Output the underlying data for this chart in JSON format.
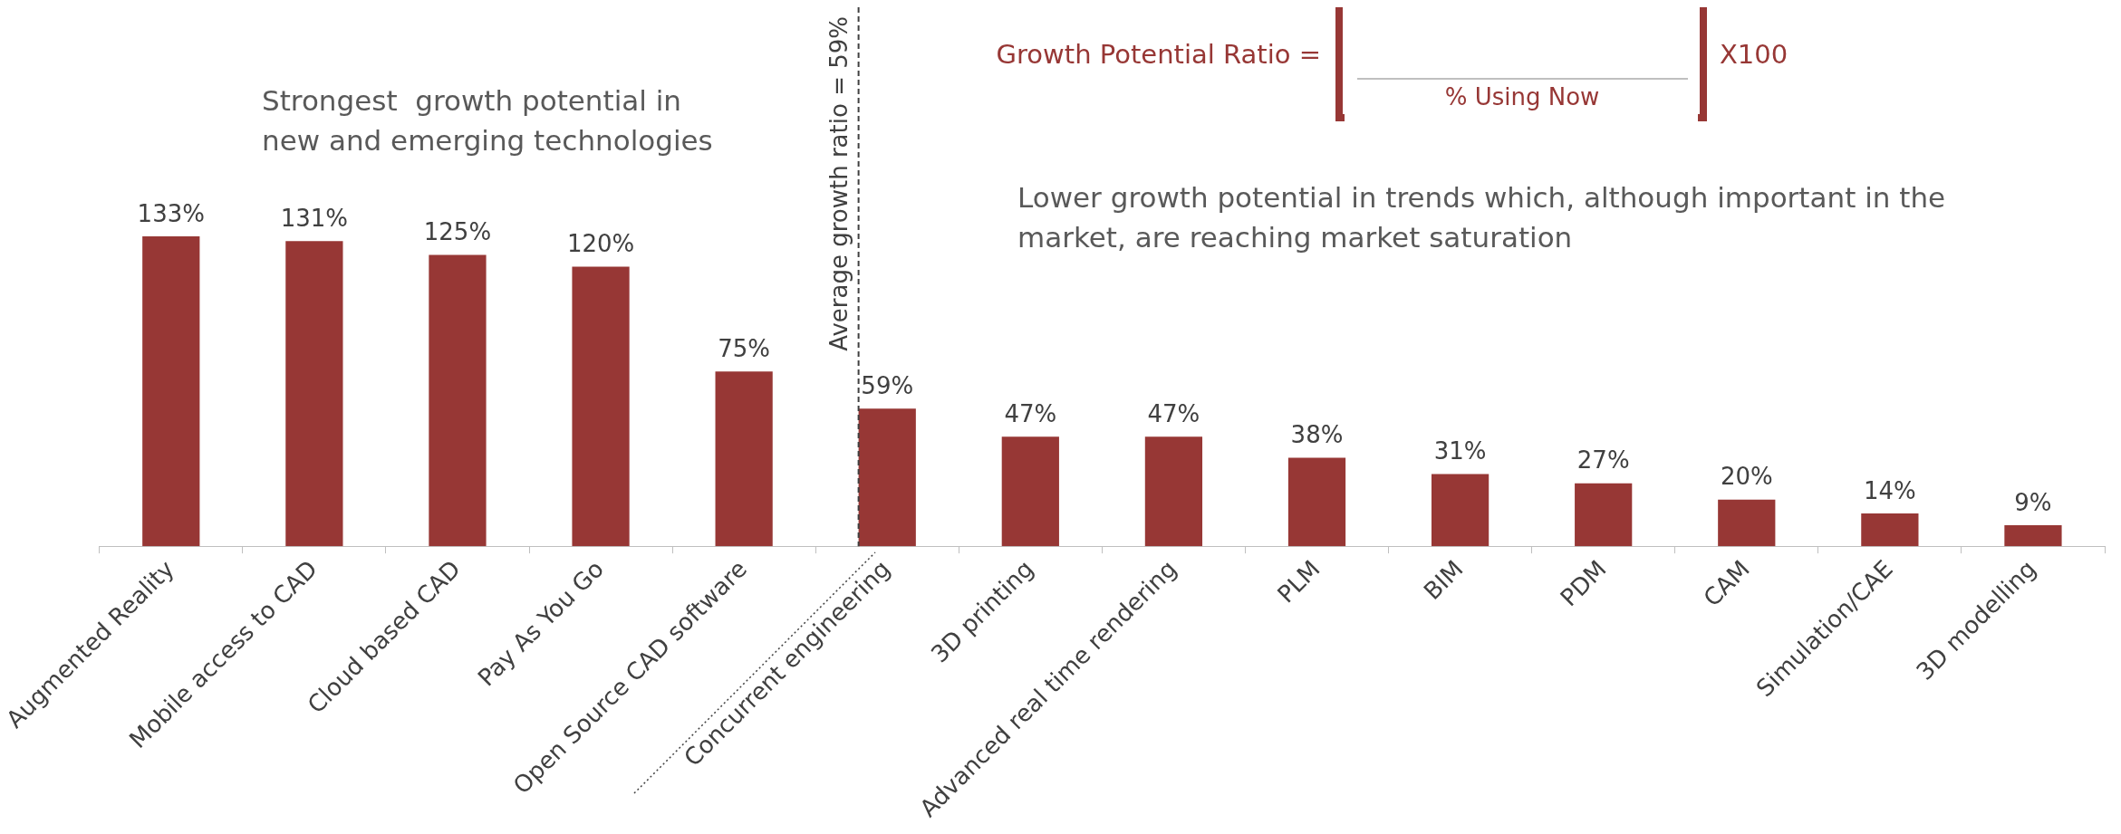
{
  "chart_data": {
    "type": "bar",
    "categories": [
      "Augmented Reality",
      "Mobile access to CAD",
      "Cloud based CAD",
      "Pay As You Go",
      "Open Source CAD software",
      "Concurrent engineering",
      "3D printing",
      "Advanced real time rendering",
      "PLM",
      "BIM",
      "PDM",
      "CAM",
      "Simulation/CAE",
      "3D modelling"
    ],
    "values": [
      133,
      131,
      125,
      120,
      75,
      59,
      47,
      47,
      38,
      31,
      27,
      20,
      14,
      9
    ],
    "value_labels": [
      "133%",
      "131%",
      "125%",
      "120%",
      "75%",
      "59%",
      "47%",
      "47%",
      "38%",
      "31%",
      "27%",
      "20%",
      "14%",
      "9%"
    ],
    "color": "#973735",
    "tick_labels": "x",
    "ref_lines": [
      {
        "axis": "x",
        "value": "Concurrent engineering",
        "label": "Average growth ratio = 59%",
        "line_style": "dashed",
        "color": "#404040"
      }
    ],
    "annotations": [
      "Strongest  growth potential in\nnew and emerging technologies",
      "Lower growth potential in trends which, although important in the\nmarket, are reaching market saturation",
      "Growth Potential Ratio =",
      "% Using Now",
      "X100"
    ]
  }
}
